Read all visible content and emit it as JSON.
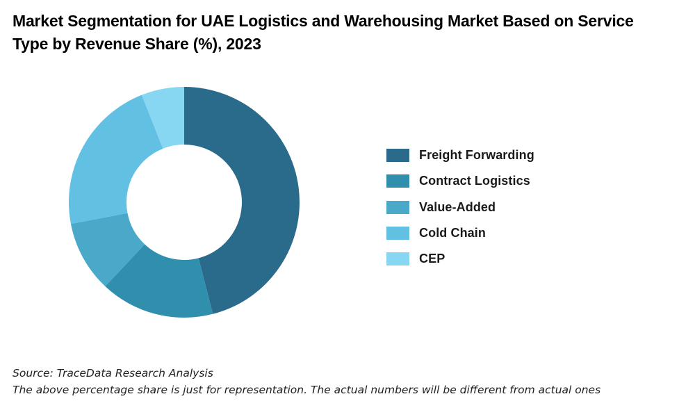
{
  "title": "Market Segmentation for UAE Logistics and Warehousing Market Based on Service Type by Revenue Share (%), 2023",
  "chart_data": {
    "type": "pie",
    "variant": "donut",
    "unit": "%",
    "title": "Market Segmentation for UAE Logistics and Warehousing Market Based on Service Type by Revenue Share (%), 2023",
    "categories": [
      "Freight Forwarding",
      "Contract Logistics",
      "Value-Added",
      "Cold Chain",
      "CEP"
    ],
    "values": [
      46,
      16,
      10,
      22,
      6
    ],
    "colors": [
      "#2a6b8c",
      "#2f8fac",
      "#4aa9c9",
      "#62c0e3",
      "#87d6f2"
    ],
    "legend_position": "right",
    "start_angle": "12 o'clock",
    "direction": "clockwise",
    "data_labels": false
  },
  "legend": {
    "items": [
      {
        "label": "Freight Forwarding",
        "color": "#2a6b8c"
      },
      {
        "label": "Contract Logistics",
        "color": "#2f8fac"
      },
      {
        "label": "Value-Added",
        "color": "#4aa9c9"
      },
      {
        "label": "Cold Chain",
        "color": "#62c0e3"
      },
      {
        "label": "CEP",
        "color": "#87d6f2"
      }
    ]
  },
  "footer": {
    "source": "Source: TraceData Research Analysis",
    "disclaimer": "The above percentage share is just for representation. The actual numbers will be different from actual ones"
  }
}
